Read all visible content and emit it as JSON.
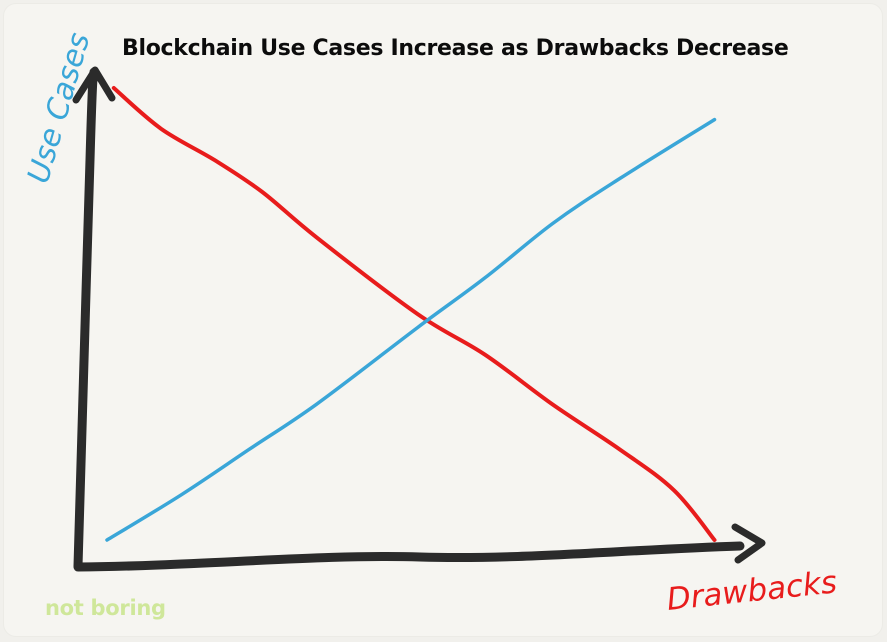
{
  "chart_data": {
    "type": "line",
    "title": "Blockchain Use Cases Increase as Drawbacks Decrease",
    "xlabel": "Drawbacks",
    "ylabel": "Use Cases",
    "xlim": [
      0,
      100
    ],
    "ylim": [
      0,
      100
    ],
    "grid": false,
    "legend": "none",
    "series": [
      {
        "color": "#e81c1c",
        "x": [
          5,
          12,
          20,
          27,
          35,
          50,
          60,
          70,
          80,
          88,
          94
        ],
        "y": [
          100,
          91,
          84,
          77,
          67,
          50,
          41,
          30,
          20,
          11,
          0
        ]
      },
      {
        "color": "#3aa6d8",
        "x": [
          4,
          15,
          25,
          35,
          50,
          60,
          70,
          80,
          94
        ],
        "y": [
          0,
          10,
          20,
          30,
          47,
          58,
          70,
          80,
          93
        ]
      }
    ],
    "axis_color": "#2b2b2b",
    "ylabel_color": "#3aa6d8",
    "xlabel_color": "#e81c1c"
  },
  "watermark": "not boring"
}
